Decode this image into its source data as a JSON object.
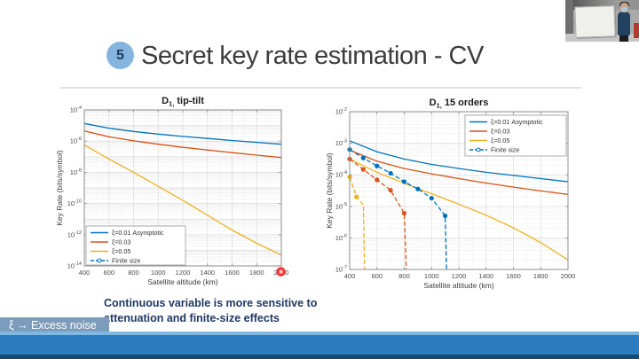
{
  "slide": {
    "number": "5",
    "title": "Secret key rate estimation - CV",
    "caption_line1": "Continuous variable is more sensitive to",
    "caption_line2": "attenuation and finite-size effects",
    "footer_badge": "ξ → Excess noise"
  },
  "colors": {
    "matlab_blue": "#0072BD",
    "matlab_red": "#D95319",
    "matlab_yellow": "#EDB120",
    "footer_main": "#2b7bbe",
    "footer_dark": "#1a4875",
    "footer_light": "#7fb9e2",
    "badge_bg": "#7d9cbb",
    "caption_text": "#1f3864"
  },
  "chart_data": [
    {
      "type": "line",
      "title_base": "D",
      "title_sub": "1,",
      "title_rest": "tip-tilt",
      "xlabel": "Satellite altitude (km)",
      "ylabel": "Key Rate (bits/symbol)",
      "xlim": [
        400,
        2000
      ],
      "x_ticks": [
        400,
        600,
        800,
        1000,
        1200,
        1400,
        1600,
        1800,
        2000
      ],
      "y_exp_range": [
        -14,
        -4
      ],
      "y_tick_exps": [
        -4,
        -6,
        -8,
        -10,
        -12,
        -14
      ],
      "grid": true,
      "legend": {
        "position": "bottom-left",
        "entries": [
          {
            "label": "ξ=0.01 Asymptotic",
            "color": "#0072BD",
            "dash": false,
            "marker": false
          },
          {
            "label": "ξ=0.03",
            "color": "#D95319",
            "dash": false,
            "marker": false
          },
          {
            "label": "ξ=0.05",
            "color": "#EDB120",
            "dash": false,
            "marker": false
          },
          {
            "label": "Finite size",
            "color": "#0072BD",
            "dash": true,
            "marker": true
          }
        ]
      },
      "series": [
        {
          "name": "ξ=0.01 Asymptotic",
          "color": "#0072BD",
          "dash": false,
          "marker": false,
          "x": [
            400,
            600,
            800,
            1000,
            1200,
            1400,
            1600,
            1800,
            2000
          ],
          "log10_y": [
            -4.87,
            -5.17,
            -5.38,
            -5.55,
            -5.7,
            -5.83,
            -5.96,
            -6.08,
            -6.2
          ]
        },
        {
          "name": "ξ=0.03",
          "color": "#D95319",
          "dash": false,
          "marker": false,
          "x": [
            400,
            600,
            800,
            1000,
            1200,
            1400,
            1600,
            1800,
            2000
          ],
          "log10_y": [
            -5.35,
            -5.72,
            -5.98,
            -6.2,
            -6.4,
            -6.57,
            -6.74,
            -6.9,
            -7.05
          ]
        },
        {
          "name": "ξ=0.05",
          "color": "#EDB120",
          "dash": false,
          "marker": false,
          "x": [
            400,
            600,
            800,
            1000,
            1200,
            1400,
            1600,
            1800,
            2000
          ],
          "log10_y": [
            -6.25,
            -7.15,
            -8.0,
            -8.9,
            -9.8,
            -10.75,
            -11.7,
            -12.55,
            -13.3
          ]
        },
        {
          "name": "Finite size",
          "color": "#0072BD",
          "dash": true,
          "marker": true,
          "x": [],
          "log10_y": []
        }
      ]
    },
    {
      "type": "line",
      "title_base": "D",
      "title_sub": "1,",
      "title_rest": "15 orders",
      "xlabel": "Satellite altitude (km)",
      "ylabel": "Key Rate (bits/symbol)",
      "xlim": [
        400,
        2000
      ],
      "x_ticks": [
        400,
        600,
        800,
        1000,
        1200,
        1400,
        1600,
        1800,
        2000
      ],
      "y_exp_range": [
        -7,
        -2
      ],
      "y_tick_exps": [
        -2,
        -3,
        -4,
        -5,
        -6,
        -7
      ],
      "grid": true,
      "legend": {
        "position": "top-right",
        "entries": [
          {
            "label": "ξ=0.01 Asymptotic",
            "color": "#0072BD",
            "dash": false,
            "marker": false
          },
          {
            "label": "ξ=0.03",
            "color": "#D95319",
            "dash": false,
            "marker": false
          },
          {
            "label": "ξ=0.05",
            "color": "#EDB120",
            "dash": false,
            "marker": false
          },
          {
            "label": "Finite size",
            "color": "#0072BD",
            "dash": true,
            "marker": true
          }
        ]
      },
      "series": [
        {
          "name": "ξ=0.01 Asymptotic",
          "color": "#0072BD",
          "dash": false,
          "marker": false,
          "x": [
            400,
            600,
            800,
            1000,
            1200,
            1400,
            1600,
            1800,
            2000
          ],
          "log10_y": [
            -2.92,
            -3.27,
            -3.5,
            -3.67,
            -3.8,
            -3.92,
            -4.02,
            -4.12,
            -4.22
          ]
        },
        {
          "name": "ξ=0.03",
          "color": "#D95319",
          "dash": false,
          "marker": false,
          "x": [
            400,
            600,
            800,
            1000,
            1200,
            1400,
            1600,
            1800,
            2000
          ],
          "log10_y": [
            -3.22,
            -3.57,
            -3.8,
            -3.97,
            -4.12,
            -4.26,
            -4.39,
            -4.51,
            -4.62
          ]
        },
        {
          "name": "ξ=0.05",
          "color": "#EDB120",
          "dash": false,
          "marker": false,
          "x": [
            400,
            600,
            800,
            1000,
            1200,
            1400,
            1600,
            1800,
            2000
          ],
          "log10_y": [
            -3.5,
            -3.92,
            -4.27,
            -4.6,
            -4.93,
            -5.28,
            -5.68,
            -6.15,
            -6.7
          ]
        },
        {
          "name": "Finite size ξ=0.01",
          "color": "#0072BD",
          "dash": true,
          "marker": true,
          "marker_points": 8,
          "x": [
            400,
            500,
            600,
            700,
            800,
            900,
            1000,
            1100,
            1110
          ],
          "log10_y": [
            -3.2,
            -3.47,
            -3.72,
            -3.95,
            -4.22,
            -4.45,
            -4.74,
            -5.3,
            -7.0
          ]
        },
        {
          "name": "Finite size ξ=0.03",
          "color": "#D95319",
          "dash": true,
          "marker": true,
          "marker_points": 5,
          "x": [
            400,
            500,
            600,
            700,
            800,
            815
          ],
          "log10_y": [
            -3.5,
            -3.83,
            -4.16,
            -4.49,
            -5.22,
            -7.0
          ]
        },
        {
          "name": "Finite size ξ=0.05",
          "color": "#EDB120",
          "dash": true,
          "marker": true,
          "marker_points": 2,
          "x": [
            400,
            450,
            500,
            510
          ],
          "log10_y": [
            -4.07,
            -4.7,
            -4.95,
            -7.0
          ]
        }
      ]
    }
  ]
}
